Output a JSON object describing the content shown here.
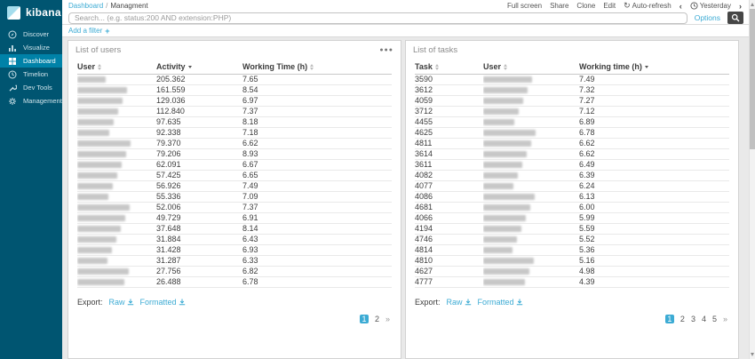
{
  "app": {
    "name": "kibana"
  },
  "sidebar": {
    "items": [
      {
        "label": "Discover",
        "icon": "compass-icon",
        "active": false
      },
      {
        "label": "Visualize",
        "icon": "bar-chart-icon",
        "active": false
      },
      {
        "label": "Dashboard",
        "icon": "dashboard-icon",
        "active": true
      },
      {
        "label": "Timelion",
        "icon": "clock-icon",
        "active": false
      },
      {
        "label": "Dev Tools",
        "icon": "wrench-icon",
        "active": false
      },
      {
        "label": "Management",
        "icon": "gear-icon",
        "active": false
      }
    ]
  },
  "topnav": {
    "breadcrumb": {
      "root": "Dashboard",
      "separator": "/",
      "current": "Managment"
    },
    "actions": [
      "Full screen",
      "Share",
      "Clone",
      "Edit"
    ],
    "auto_refresh": "Auto-refresh",
    "time_range": "Yesterday"
  },
  "querybar": {
    "placeholder": "Search... (e.g. status:200 AND extension:PHP)",
    "options_label": "Options"
  },
  "filterbar": {
    "add_filter_label": "Add a filter"
  },
  "icons": {
    "refresh": "↻",
    "prev": "‹",
    "next": "›",
    "ellipsis": "●●●",
    "plus": "+"
  },
  "panels": {
    "users": {
      "title": "List of users",
      "columns": [
        "User",
        "Activity",
        "Working Time (h)"
      ],
      "sorted": {
        "column": "Activity",
        "direction": "desc"
      },
      "rows": [
        {
          "user": "[redacted]",
          "activity": "205.362",
          "hours": "7.65"
        },
        {
          "user": "[redacted]",
          "activity": "161.559",
          "hours": "8.54"
        },
        {
          "user": "[redacted]",
          "activity": "129.036",
          "hours": "6.97"
        },
        {
          "user": "[redacted]",
          "activity": "112.840",
          "hours": "7.37"
        },
        {
          "user": "[redacted]",
          "activity": "97.635",
          "hours": "8.18"
        },
        {
          "user": "[redacted]",
          "activity": "92.338",
          "hours": "7.18"
        },
        {
          "user": "[redacted]",
          "activity": "79.370",
          "hours": "6.62"
        },
        {
          "user": "[redacted]",
          "activity": "79.206",
          "hours": "8.93"
        },
        {
          "user": "[redacted]",
          "activity": "62.091",
          "hours": "6.67"
        },
        {
          "user": "[redacted]",
          "activity": "57.425",
          "hours": "6.65"
        },
        {
          "user": "[redacted]",
          "activity": "56.926",
          "hours": "7.49"
        },
        {
          "user": "[redacted]",
          "activity": "55.336",
          "hours": "7.09"
        },
        {
          "user": "[redacted]",
          "activity": "52.006",
          "hours": "7.37"
        },
        {
          "user": "[redacted]",
          "activity": "49.729",
          "hours": "6.91"
        },
        {
          "user": "[redacted]",
          "activity": "37.648",
          "hours": "8.14"
        },
        {
          "user": "[redacted]",
          "activity": "31.884",
          "hours": "6.43"
        },
        {
          "user": "[redacted]",
          "activity": "31.428",
          "hours": "6.93"
        },
        {
          "user": "[redacted]",
          "activity": "31.287",
          "hours": "6.33"
        },
        {
          "user": "[redacted]",
          "activity": "27.756",
          "hours": "6.82"
        },
        {
          "user": "[redacted]",
          "activity": "26.488",
          "hours": "6.78"
        }
      ],
      "export_label": "Export:",
      "raw_label": "Raw",
      "formatted_label": "Formatted",
      "pagination": {
        "pages": [
          "1",
          "2"
        ],
        "current": "1",
        "next": "»"
      }
    },
    "tasks": {
      "title": "List of tasks",
      "columns": [
        "Task",
        "User",
        "Working time (h)"
      ],
      "sorted": {
        "column": "Working time (h)",
        "direction": "desc"
      },
      "rows": [
        {
          "task": "3590",
          "user": "[redacted]",
          "hours": "7.49"
        },
        {
          "task": "3612",
          "user": "[redacted]",
          "hours": "7.32"
        },
        {
          "task": "4059",
          "user": "[redacted]",
          "hours": "7.27"
        },
        {
          "task": "3712",
          "user": "[redacted]",
          "hours": "7.12"
        },
        {
          "task": "4455",
          "user": "[redacted]",
          "hours": "6.89"
        },
        {
          "task": "4625",
          "user": "[redacted]",
          "hours": "6.78"
        },
        {
          "task": "4811",
          "user": "[redacted]",
          "hours": "6.62"
        },
        {
          "task": "3614",
          "user": "[redacted]",
          "hours": "6.62"
        },
        {
          "task": "3611",
          "user": "[redacted]",
          "hours": "6.49"
        },
        {
          "task": "4082",
          "user": "[redacted]",
          "hours": "6.39"
        },
        {
          "task": "4077",
          "user": "[redacted]",
          "hours": "6.24"
        },
        {
          "task": "4086",
          "user": "[redacted]",
          "hours": "6.13"
        },
        {
          "task": "4681",
          "user": "[redacted]",
          "hours": "6.00"
        },
        {
          "task": "4066",
          "user": "[redacted]",
          "hours": "5.99"
        },
        {
          "task": "4194",
          "user": "[redacted]",
          "hours": "5.59"
        },
        {
          "task": "4746",
          "user": "[redacted]",
          "hours": "5.52"
        },
        {
          "task": "4814",
          "user": "[redacted]",
          "hours": "5.36"
        },
        {
          "task": "4810",
          "user": "[redacted]",
          "hours": "5.16"
        },
        {
          "task": "4627",
          "user": "[redacted]",
          "hours": "4.98"
        },
        {
          "task": "4777",
          "user": "[redacted]",
          "hours": "4.39"
        }
      ],
      "export_label": "Export:",
      "raw_label": "Raw",
      "formatted_label": "Formatted",
      "pagination": {
        "pages": [
          "1",
          "2",
          "3",
          "4",
          "5"
        ],
        "current": "1",
        "next": "»"
      }
    }
  },
  "colors": {
    "accent_blue": "#3cabd4",
    "sidebar_teal": "#005571",
    "sidebar_active": "#0082a8",
    "panel_border": "#d2d2d2",
    "page_background": "#e9e9e9",
    "search_button_dark": "#464646"
  }
}
